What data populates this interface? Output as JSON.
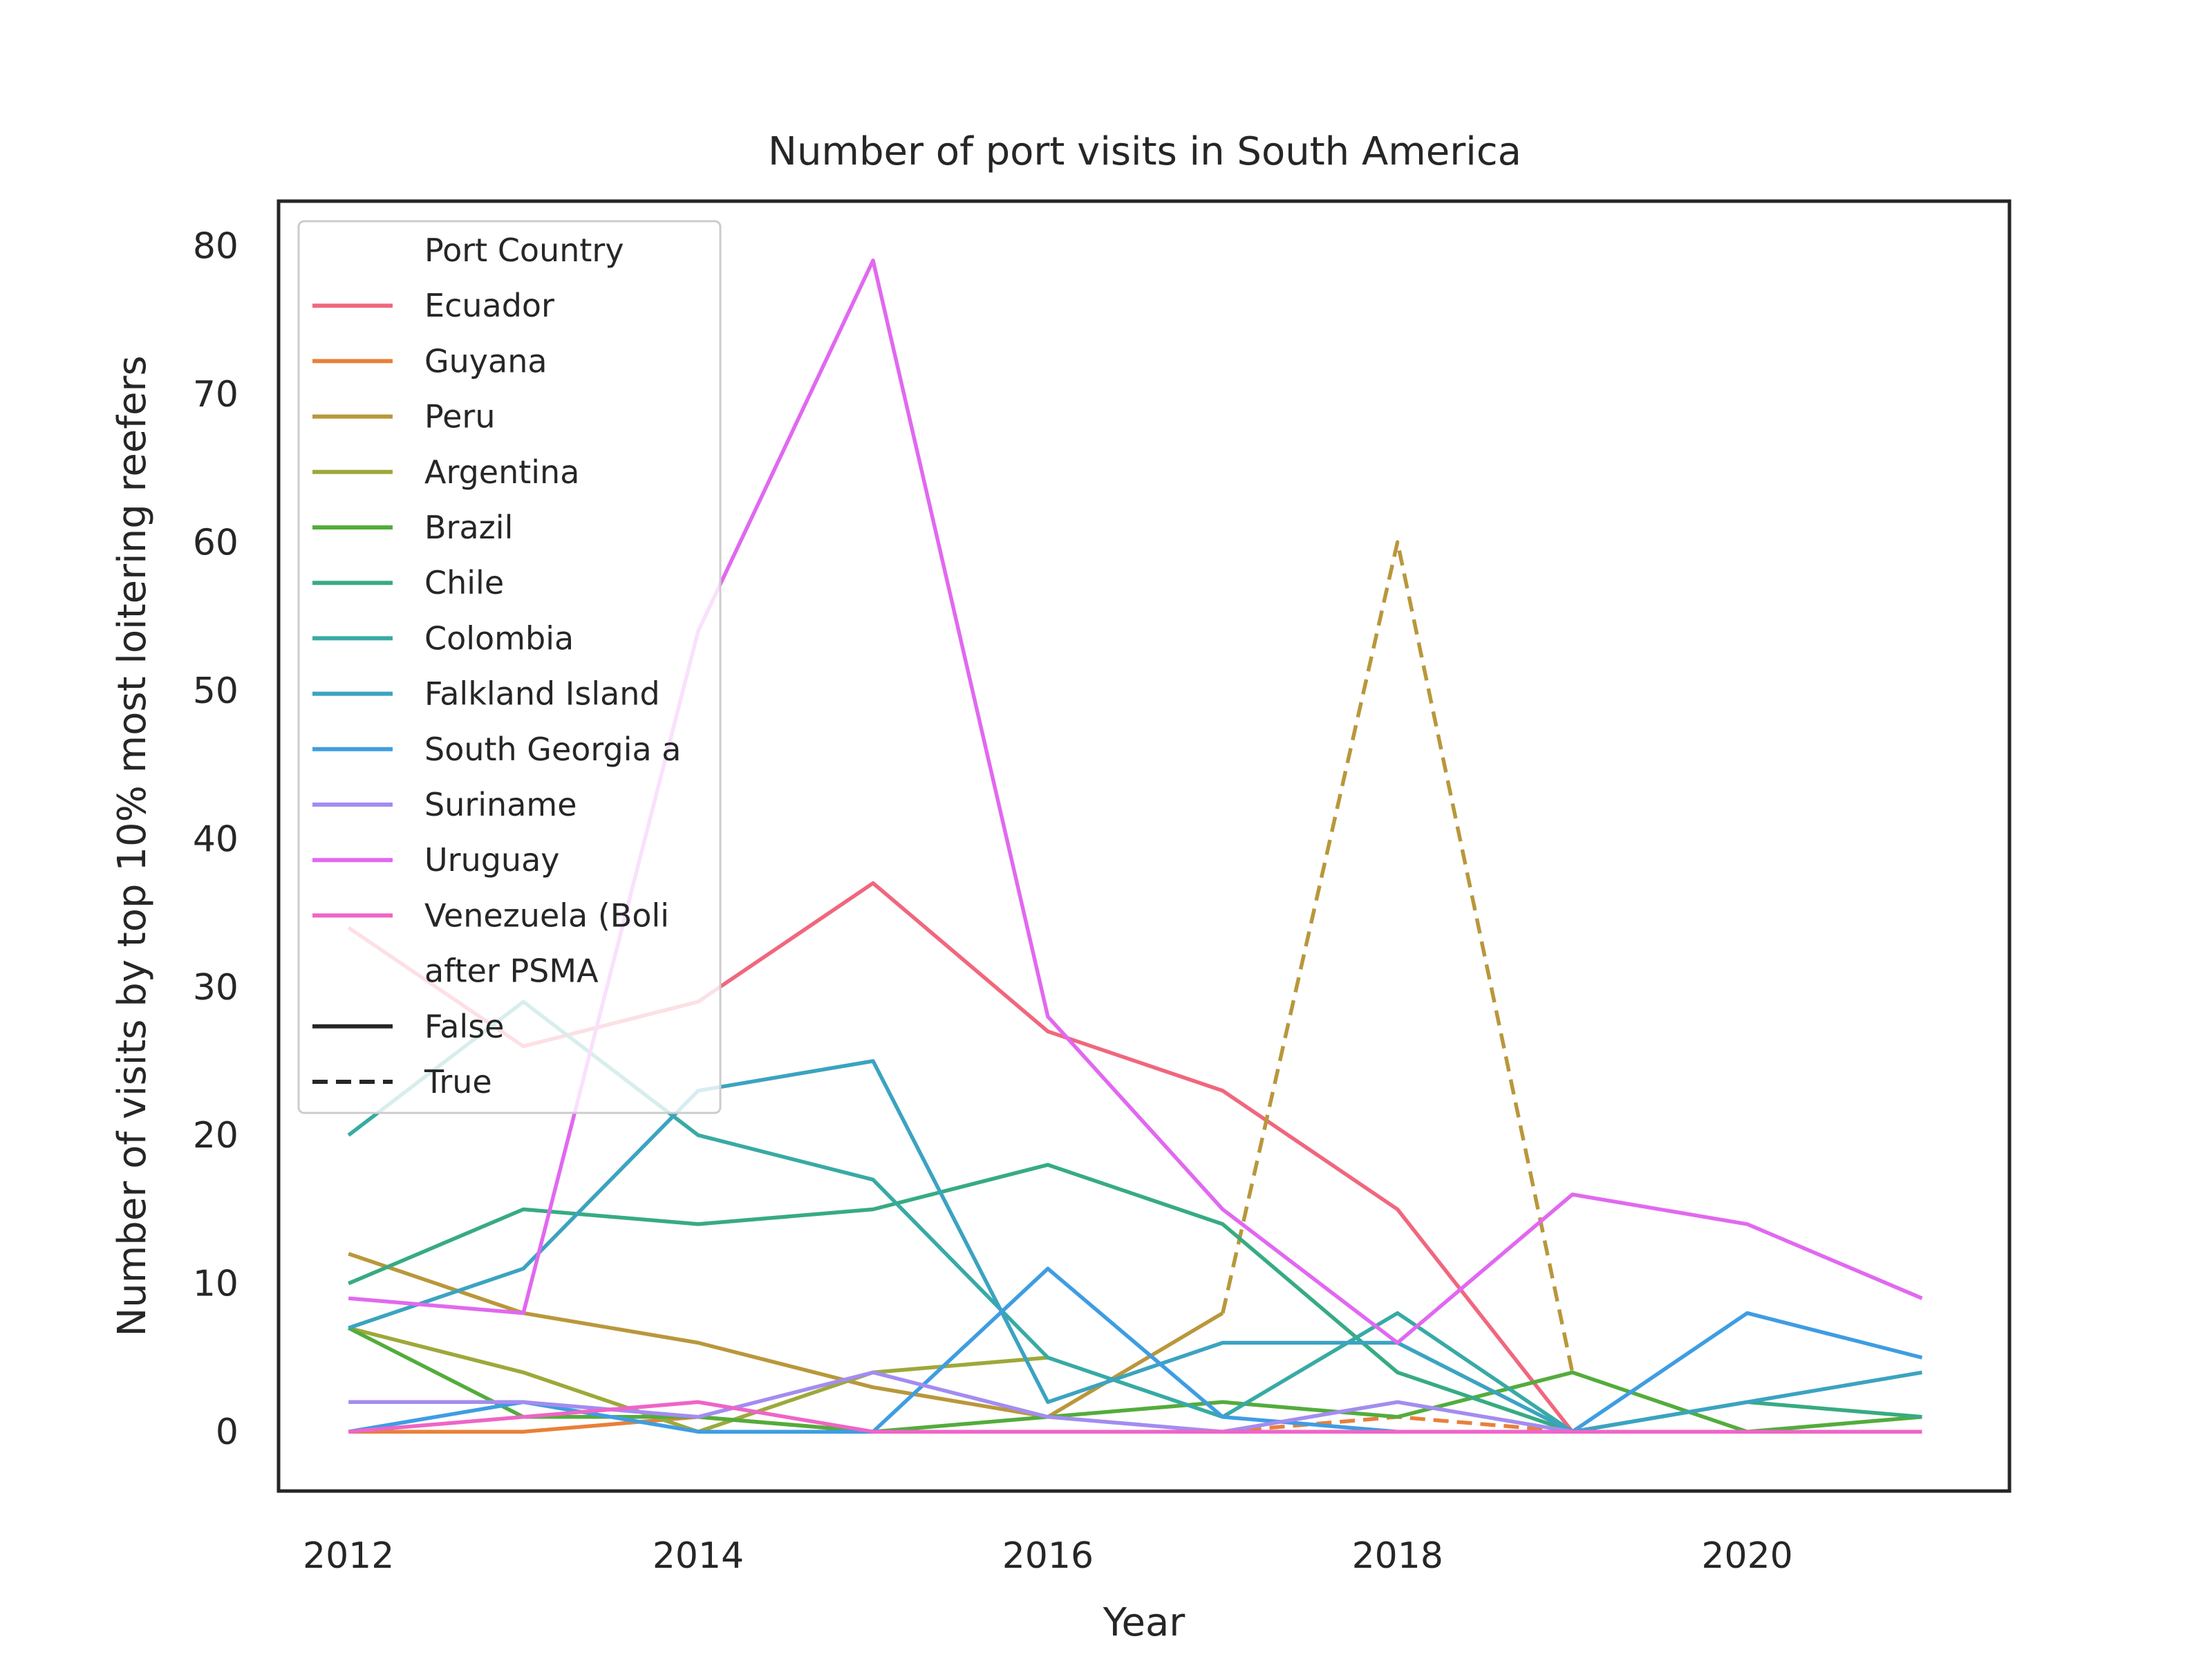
{
  "chart_data": {
    "type": "line",
    "title": "Number of port visits in South America",
    "xlabel": "Year",
    "ylabel": "Number of visits by top 10% most loitering reefers",
    "xlim": [
      2011.6,
      2021.5
    ],
    "ylim": [
      -4,
      83
    ],
    "x_ticks": [
      2012,
      2014,
      2016,
      2018,
      2020
    ],
    "y_ticks": [
      0,
      10,
      20,
      30,
      40,
      50,
      60,
      70,
      80
    ],
    "grid": false,
    "legend": {
      "placement": "top-left",
      "hue_title": "Port Country",
      "style_title": "after PSMA",
      "style_entries": [
        {
          "label": "False",
          "dash": "solid"
        },
        {
          "label": "True",
          "dash": "dashed"
        }
      ]
    },
    "series": [
      {
        "name": "Ecuador",
        "color": "#f0677d",
        "values_by_style": {
          "False": {
            "x": [
              2012,
              2013,
              2014,
              2015,
              2016,
              2017,
              2018,
              2019
            ],
            "y": [
              34,
              26,
              29,
              37,
              27,
              23,
              15,
              0
            ]
          }
        }
      },
      {
        "name": "Guyana",
        "color": "#e8803a",
        "values_by_style": {
          "False": {
            "x": [
              2012,
              2013,
              2014,
              2015,
              2016,
              2017
            ],
            "y": [
              0,
              0,
              1,
              0,
              0,
              0
            ]
          },
          "True": {
            "x": [
              2017,
              2018,
              2019
            ],
            "y": [
              0,
              1,
              0
            ]
          }
        }
      },
      {
        "name": "Peru",
        "color": "#b9973b",
        "values_by_style": {
          "False": {
            "x": [
              2012,
              2013,
              2014,
              2015,
              2016,
              2017
            ],
            "y": [
              12,
              8,
              6,
              3,
              1,
              8
            ]
          },
          "True": {
            "x": [
              2017,
              2018,
              2019
            ],
            "y": [
              8,
              60,
              4
            ]
          }
        }
      },
      {
        "name": "Argentina",
        "color": "#9ea83a",
        "values_by_style": {
          "False": {
            "x": [
              2012,
              2013,
              2014,
              2015,
              2016
            ],
            "y": [
              7,
              4,
              0,
              4,
              5
            ]
          }
        }
      },
      {
        "name": "Brazil",
        "color": "#53ac3c",
        "values_by_style": {
          "False": {
            "x": [
              2012,
              2013,
              2014,
              2015,
              2016,
              2017,
              2018,
              2019,
              2020,
              2021
            ],
            "y": [
              7,
              1,
              1,
              0,
              1,
              2,
              1,
              4,
              0,
              1
            ]
          }
        }
      },
      {
        "name": "Chile",
        "color": "#37ab82",
        "values_by_style": {
          "False": {
            "x": [
              2012,
              2013,
              2014,
              2015,
              2016,
              2017,
              2018,
              2019,
              2020,
              2021
            ],
            "y": [
              10,
              15,
              14,
              15,
              18,
              14,
              4,
              0,
              2,
              1
            ]
          }
        }
      },
      {
        "name": "Colombia",
        "color": "#38aaa4",
        "values_by_style": {
          "False": {
            "x": [
              2012,
              2013,
              2014,
              2015,
              2016,
              2017,
              2018,
              2019
            ],
            "y": [
              20,
              29,
              20,
              17,
              5,
              1,
              8,
              0
            ]
          }
        }
      },
      {
        "name": "Falkland Island",
        "color": "#3ba3c1",
        "values_by_style": {
          "False": {
            "x": [
              2012,
              2013,
              2014,
              2015,
              2016,
              2017,
              2018,
              2019,
              2020,
              2021
            ],
            "y": [
              7,
              11,
              23,
              25,
              2,
              6,
              6,
              0,
              2,
              4
            ]
          }
        }
      },
      {
        "name": "South Georgia a",
        "color": "#3e9de2",
        "values_by_style": {
          "False": {
            "x": [
              2012,
              2013,
              2014,
              2015,
              2016,
              2017,
              2018,
              2019,
              2020,
              2021
            ],
            "y": [
              0,
              2,
              0,
              0,
              11,
              1,
              0,
              0,
              8,
              5
            ]
          }
        }
      },
      {
        "name": "Suriname",
        "color": "#a38cf0",
        "values_by_style": {
          "False": {
            "x": [
              2012,
              2013,
              2014,
              2015,
              2016,
              2017,
              2018,
              2019
            ],
            "y": [
              2,
              2,
              1,
              4,
              1,
              0,
              2,
              0
            ]
          }
        }
      },
      {
        "name": "Uruguay",
        "color": "#e168f0",
        "values_by_style": {
          "False": {
            "x": [
              2012,
              2013,
              2014,
              2015,
              2016,
              2017,
              2018,
              2019,
              2020,
              2021
            ],
            "y": [
              9,
              8,
              54,
              79,
              28,
              15,
              6,
              16,
              14,
              9
            ]
          }
        }
      },
      {
        "name": "Venezuela (Boli",
        "color": "#ef64c7",
        "values_by_style": {
          "False": {
            "x": [
              2012,
              2013,
              2014,
              2015,
              2016,
              2017,
              2018,
              2019,
              2020,
              2021
            ],
            "y": [
              0,
              1,
              2,
              0,
              0,
              0,
              0,
              0,
              0,
              0
            ]
          }
        }
      }
    ]
  }
}
